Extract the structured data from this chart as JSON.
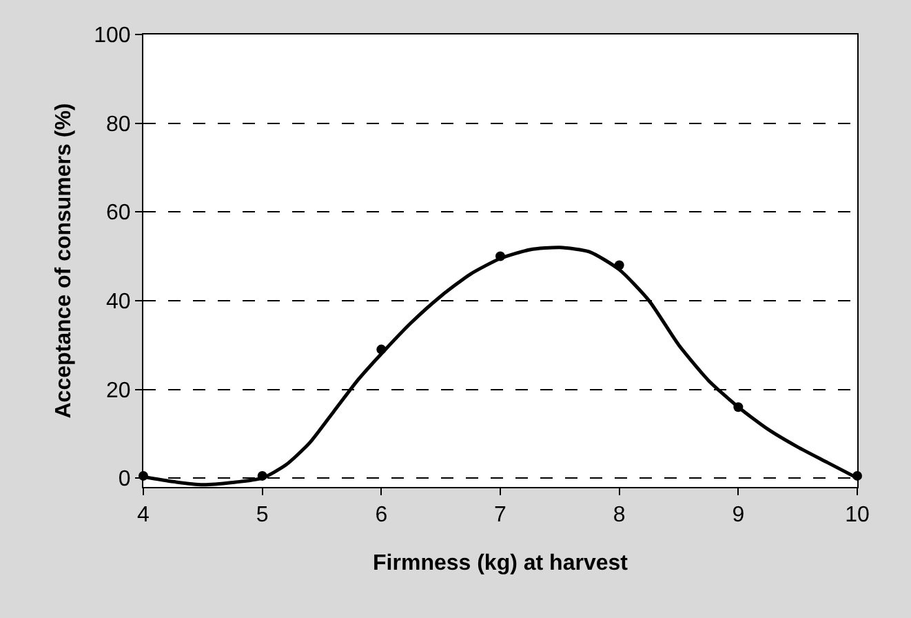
{
  "chart_data": {
    "type": "scatter",
    "xlabel": "Firmness (kg) at harvest",
    "ylabel": "Acceptance of consumers (%)",
    "series": [
      {
        "type": "line",
        "color": "#000000",
        "marker": "none",
        "line_style": "solid",
        "x": [
          4,
          4.25,
          4.5,
          4.75,
          5,
          5.2,
          5.4,
          5.6,
          5.8,
          6,
          6.25,
          6.5,
          6.75,
          7,
          7.25,
          7.5,
          7.75,
          8,
          8.25,
          8.5,
          8.75,
          9,
          9.25,
          9.5,
          9.75,
          10
        ],
        "values": [
          0.3,
          -0.8,
          -1.5,
          -1,
          0,
          3,
          8,
          15,
          22,
          28,
          35,
          41,
          46,
          49.5,
          51.5,
          52,
          51,
          47,
          40,
          30,
          22,
          16,
          11,
          7,
          3.5,
          0
        ]
      },
      {
        "type": "scatter",
        "color": "#000000",
        "marker": "circle",
        "x": [
          4,
          5,
          6,
          7,
          8,
          9,
          10
        ],
        "values": [
          0.5,
          0.5,
          29,
          50,
          48,
          16,
          0.5
        ]
      }
    ],
    "xlim": [
      4,
      10
    ],
    "xticks": [
      4,
      5,
      6,
      7,
      8,
      9,
      10
    ],
    "ylim": [
      -2,
      100
    ],
    "yticks": [
      0,
      20,
      40,
      60,
      80,
      100
    ],
    "grid": "y"
  }
}
